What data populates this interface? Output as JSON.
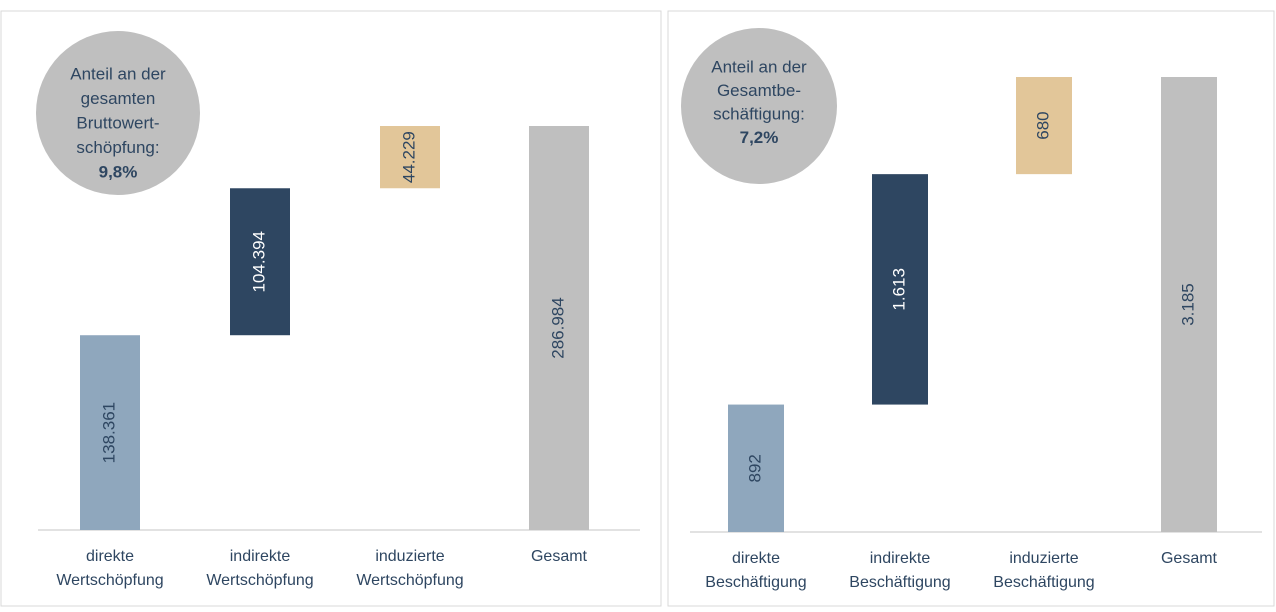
{
  "chart_data": [
    {
      "type": "waterfall",
      "annotation": [
        "Anteil an der",
        "gesamten",
        "Bruttowert-",
        "schöpfung:",
        "9,8%"
      ],
      "categories": [
        "direkte Wertschöpfung",
        "indirekte Wertschöpfung",
        "induzierte Wertschöpfung",
        "Gesamt"
      ],
      "values": [
        138361,
        104394,
        44229,
        286984
      ],
      "value_labels": [
        "138.361",
        "104.394",
        "44.229",
        "286.984"
      ],
      "colors": [
        "#8fa7bd",
        "#2e4661",
        "#e2c699",
        "#bfbfbf"
      ]
    },
    {
      "type": "waterfall",
      "annotation": [
        "Anteil an der",
        "Gesamtbe-",
        "schäftigung:",
        "7,2%"
      ],
      "categories": [
        "direkte Beschäftigung",
        "indirekte Beschäftigung",
        "induzierte Beschäftigung",
        "Gesamt"
      ],
      "values": [
        892,
        1613,
        680,
        3185
      ],
      "value_labels": [
        "892",
        "1.613",
        "680",
        "3.185"
      ],
      "colors": [
        "#8fa7bd",
        "#2e4661",
        "#e2c699",
        "#bfbfbf"
      ]
    }
  ]
}
